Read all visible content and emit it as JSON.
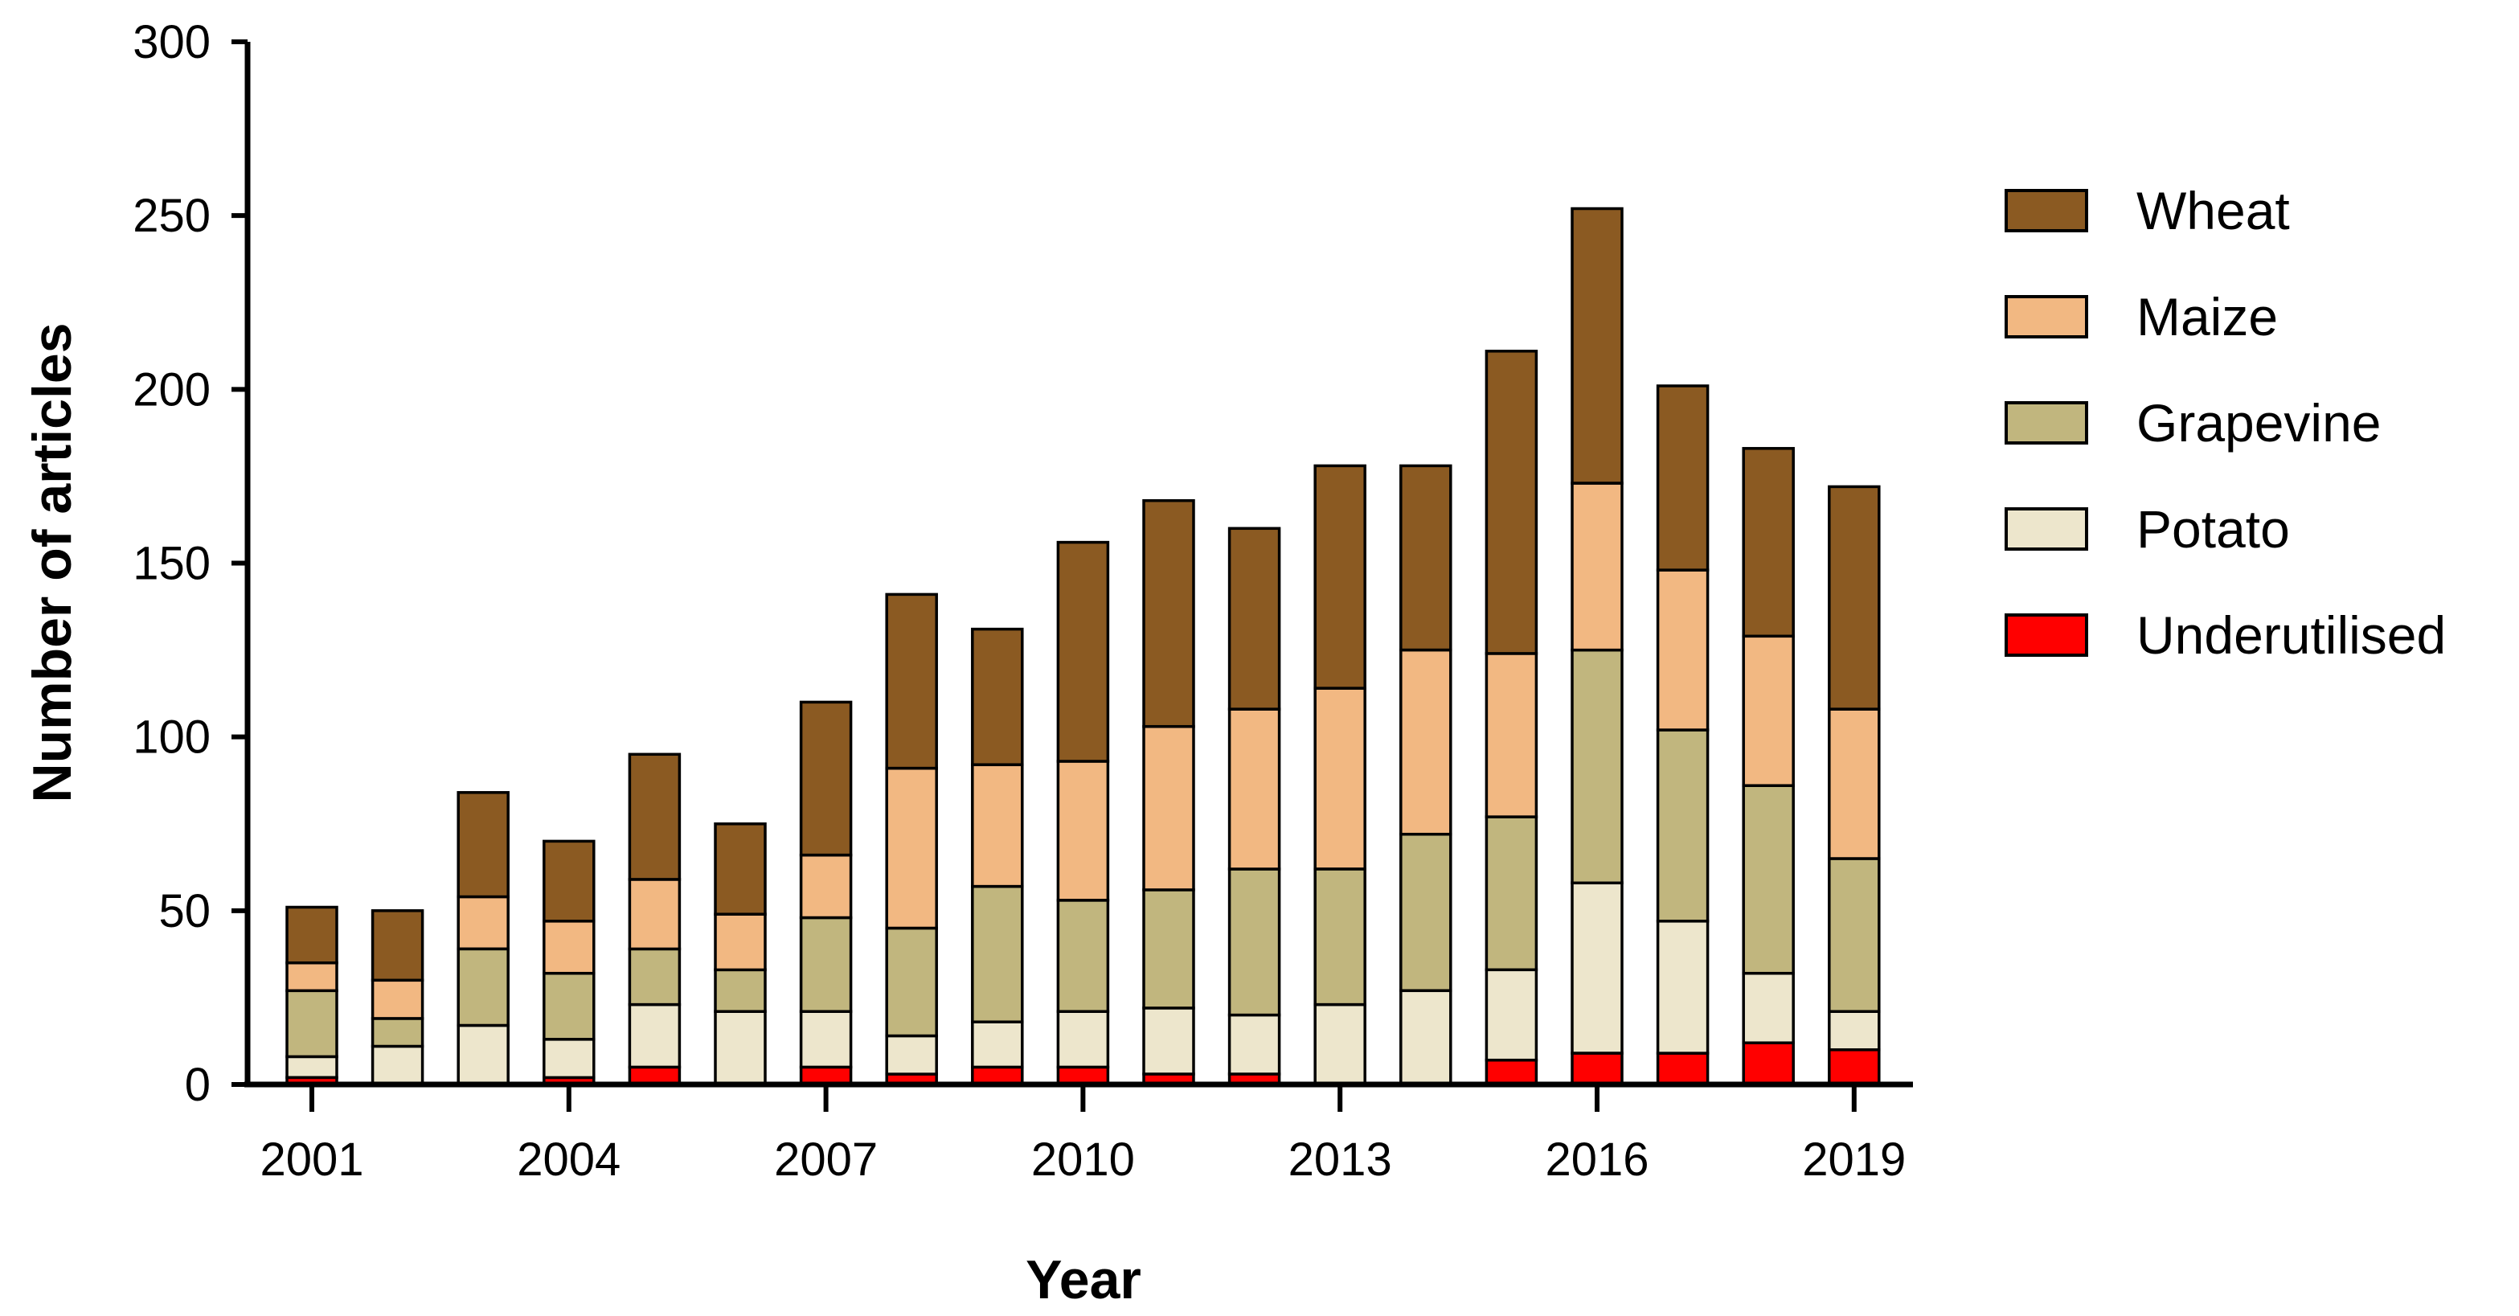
{
  "chart_data": {
    "type": "bar",
    "stacked": true,
    "title": "",
    "xlabel": "Year",
    "ylabel": "Number of articles",
    "ylim": [
      0,
      300
    ],
    "yticks": [
      0,
      50,
      100,
      150,
      200,
      250,
      300
    ],
    "categories": [
      "2001",
      "2002",
      "2003",
      "2004",
      "2005",
      "2006",
      "2007",
      "2008",
      "2009",
      "2010",
      "2011",
      "2012",
      "2013",
      "2014",
      "2015",
      "2016",
      "2017",
      "2018",
      "2019"
    ],
    "xtick_labels": [
      "2001",
      "2004",
      "2007",
      "2010",
      "2013",
      "2016",
      "2019"
    ],
    "legend_position": "right",
    "series": [
      {
        "name": "Underutilised",
        "color": "#ff0000",
        "values": [
          2,
          0,
          0,
          2,
          5,
          0,
          5,
          3,
          5,
          5,
          3,
          3,
          0,
          0,
          7,
          9,
          9,
          12,
          10
        ]
      },
      {
        "name": "Potato",
        "color": "#ede6cc",
        "values": [
          6,
          11,
          17,
          11,
          18,
          21,
          16,
          11,
          13,
          16,
          19,
          17,
          23,
          27,
          26,
          49,
          38,
          20,
          11
        ]
      },
      {
        "name": "Grapevine",
        "color": "#c1b67e",
        "values": [
          19,
          8,
          22,
          19,
          16,
          12,
          27,
          31,
          39,
          32,
          34,
          42,
          39,
          45,
          44,
          67,
          55,
          54,
          44
        ]
      },
      {
        "name": "Maize",
        "color": "#f2b882",
        "values": [
          8,
          11,
          15,
          15,
          20,
          16,
          18,
          46,
          35,
          40,
          47,
          46,
          52,
          53,
          47,
          48,
          46,
          43,
          43
        ]
      },
      {
        "name": "Wheat",
        "color": "#8b5a22",
        "values": [
          16,
          20,
          30,
          23,
          36,
          26,
          44,
          50,
          39,
          63,
          65,
          52,
          64,
          53,
          87,
          79,
          53,
          54,
          64
        ]
      }
    ]
  }
}
